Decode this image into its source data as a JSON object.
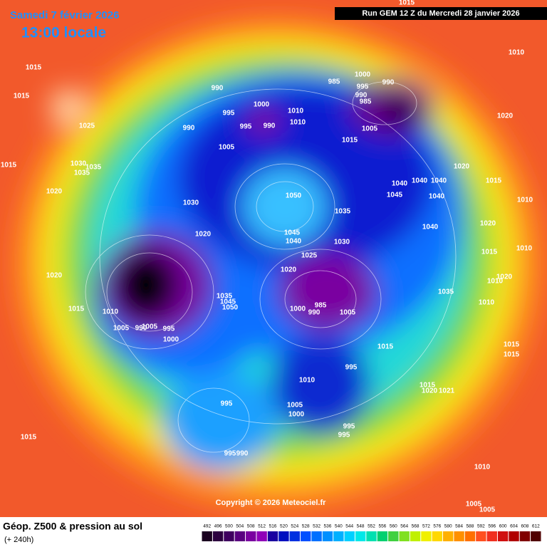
{
  "header": {
    "date": "Samedi 7 février 2026",
    "time": "13:00 locale",
    "run": "Run GEM 12 Z du Mercredi 28 janvier 2026"
  },
  "copyright": "Copyright © 2026 Meteociel.fr",
  "legend": {
    "title": "Géop. Z500 & pression au sol",
    "lead": "(+ 240h)"
  },
  "colorbar": {
    "ticks": [
      492,
      496,
      500,
      504,
      508,
      512,
      516,
      520,
      524,
      528,
      532,
      536,
      540,
      544,
      548,
      552,
      556,
      560,
      564,
      568,
      572,
      576,
      580,
      584,
      588,
      592,
      596,
      600,
      604,
      608,
      612
    ],
    "colors": [
      "#1a0020",
      "#2d0040",
      "#400060",
      "#5a0080",
      "#7a00a0",
      "#9000b8",
      "#1a00a0",
      "#0010c0",
      "#0030e0",
      "#0050ff",
      "#0070ff",
      "#0090ff",
      "#00b0ff",
      "#00d0ff",
      "#00e8e8",
      "#00e0b0",
      "#00d070",
      "#40d040",
      "#80e020",
      "#c0f000",
      "#f0f000",
      "#ffd800",
      "#ffb000",
      "#ff9000",
      "#ff7000",
      "#ff5020",
      "#f03020",
      "#d01010",
      "#b00000",
      "#800000",
      "#500000"
    ]
  },
  "isobar_labels": [
    1015,
    1015,
    1025,
    1015,
    1030,
    1035,
    1035,
    1020,
    1020,
    1015,
    1030,
    1020,
    990,
    1000,
    995,
    990,
    995,
    990,
    1010,
    1010,
    1005,
    1000,
    985,
    995,
    990,
    990,
    985,
    1005,
    1015,
    1010,
    1020,
    1020,
    1015,
    1040,
    1040,
    1040,
    1045,
    1040,
    1010,
    1050,
    1035,
    1045,
    1040,
    1030,
    1025,
    1020,
    1040,
    1020,
    1015,
    1010,
    1020,
    1010,
    1035,
    1010,
    1035,
    1045,
    1050,
    1010,
    1005,
    990,
    1005,
    995,
    1000,
    1000,
    990,
    985,
    1005,
    1015,
    1015,
    1015,
    995,
    1010,
    995,
    1005,
    1000,
    995,
    995,
    995,
    990,
    1015,
    1020,
    1021,
    1015,
    1010,
    1005,
    1005,
    1015
  ]
}
